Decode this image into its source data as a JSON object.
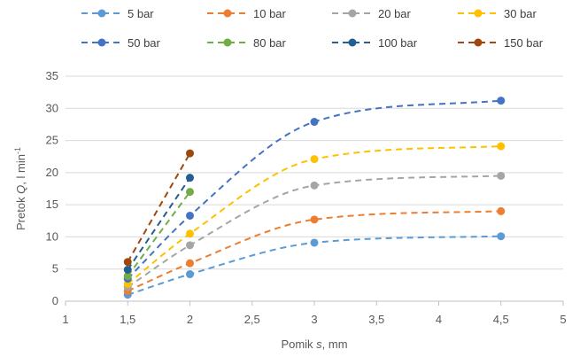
{
  "chart_data": {
    "type": "scatter",
    "title": "",
    "xlabel": {
      "prefix": "Pomik ",
      "symbol": "s",
      "suffix": ", mm"
    },
    "ylabel": {
      "prefix": "Pretok ",
      "symbol": "Q",
      "suffix": ", l min",
      "superscript": "-1"
    },
    "xlim": [
      1,
      5
    ],
    "ylim": [
      0,
      35
    ],
    "x_ticks": [
      "1",
      "1,5",
      "2",
      "2,5",
      "3",
      "3,5",
      "4",
      "4,5",
      "5"
    ],
    "y_ticks": [
      "0",
      "5",
      "10",
      "15",
      "20",
      "25",
      "30",
      "35"
    ],
    "grid": "horizontal",
    "legend_position": "top",
    "series": [
      {
        "name": "5 bar",
        "color": "#5B9BD5",
        "x": [
          1.5,
          2,
          3,
          4.5
        ],
        "y": [
          1.0,
          4.2,
          9.1,
          10.1
        ]
      },
      {
        "name": "10 bar",
        "color": "#ED7D31",
        "x": [
          1.5,
          2,
          3,
          4.5
        ],
        "y": [
          1.6,
          5.9,
          12.7,
          14.0
        ]
      },
      {
        "name": "20 bar",
        "color": "#A5A5A5",
        "x": [
          1.5,
          2,
          3,
          4.5
        ],
        "y": [
          2.2,
          8.7,
          18.0,
          19.5
        ]
      },
      {
        "name": "30 bar",
        "color": "#FFC000",
        "x": [
          1.5,
          2,
          3,
          4.5
        ],
        "y": [
          2.7,
          10.5,
          22.1,
          24.1
        ]
      },
      {
        "name": "50 bar",
        "color": "#4472C4",
        "x": [
          1.5,
          2,
          3,
          4.5
        ],
        "y": [
          3.5,
          13.3,
          27.9,
          31.2
        ]
      },
      {
        "name": "80 bar",
        "color": "#70AD47",
        "x": [
          1.5,
          2
        ],
        "y": [
          3.9,
          17.0
        ]
      },
      {
        "name": "100 bar",
        "color": "#255E91",
        "x": [
          1.5,
          2
        ],
        "y": [
          4.9,
          19.2
        ]
      },
      {
        "name": "150 bar",
        "color": "#9E480E",
        "x": [
          1.5,
          2
        ],
        "y": [
          6.1,
          23.0
        ]
      }
    ]
  }
}
